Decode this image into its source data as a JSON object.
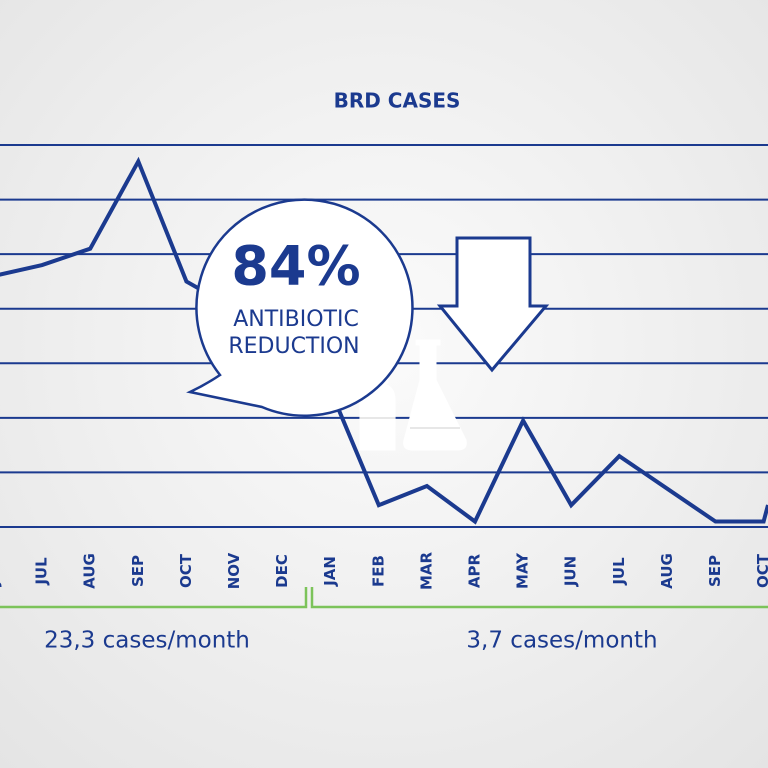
{
  "chart_data": {
    "type": "line",
    "title": "BRD CASES",
    "categories": [
      "JUN",
      "JUL",
      "AUG",
      "SEP",
      "OCT",
      "NOV",
      "DEC",
      "JAN",
      "FEB",
      "MAR",
      "APR",
      "MAY",
      "JUN",
      "JUL",
      "AUG",
      "SEP",
      "OCT"
    ],
    "values": [
      4.6,
      4.8,
      5.1,
      6.7,
      4.5,
      4.0,
      3.5,
      2.5,
      0.4,
      0.75,
      0.1,
      1.95,
      0.4,
      1.3,
      0.7,
      0.1,
      0.1
    ],
    "color": "#1b3a8f",
    "ylim": [
      0,
      7
    ],
    "yticks": [
      0,
      1,
      2,
      3,
      4,
      5,
      6,
      7
    ],
    "grid": true,
    "callout": {
      "value": "84%",
      "lines": [
        "ANTIBIOTIC",
        "REDUCTION"
      ]
    },
    "periods": [
      "23,3 cases/month",
      "3,7 cases/month"
    ]
  }
}
